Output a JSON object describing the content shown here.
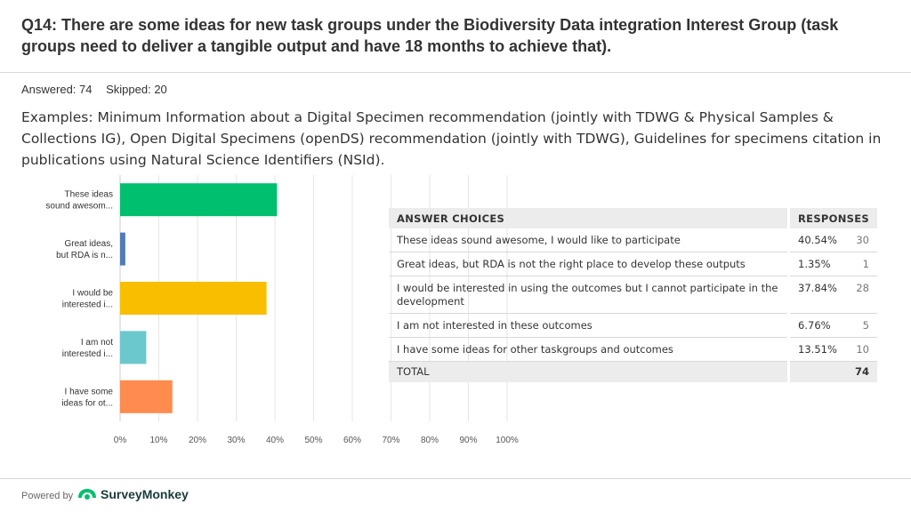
{
  "question": {
    "title": "Q14: There are some ideas for new task groups under the Biodiversity Data integration Interest Group (task groups need to deliver a tangible output and have 18 months to achieve that).",
    "answered": "Answered: 74",
    "skipped": "Skipped: 20",
    "description": "Examples: Minimum Information about a Digital Specimen recommendation (jointly with TDWG & Physical Samples & Collections IG), Open Digital Specimens (openDS) recommendation (jointly with TDWG), Guidelines for specimens citation in publications using Natural Science Identifiers (NSId)."
  },
  "chart_data": {
    "type": "bar",
    "orientation": "horizontal",
    "categories": [
      [
        "These ideas",
        "sound awesom..."
      ],
      [
        "Great ideas,",
        "but RDA is n..."
      ],
      [
        "I would be",
        "interested i..."
      ],
      [
        "I am not",
        "interested i..."
      ],
      [
        "I have some",
        "ideas for ot..."
      ]
    ],
    "values": [
      40.54,
      1.35,
      37.84,
      6.76,
      13.51
    ],
    "colors": [
      "#00bf6f",
      "#507cb6",
      "#f9be00",
      "#6bc8cd",
      "#ff8b4f"
    ],
    "xlim": [
      0,
      100
    ],
    "xticks": [
      "0%",
      "10%",
      "20%",
      "30%",
      "40%",
      "50%",
      "60%",
      "70%",
      "80%",
      "90%",
      "100%"
    ],
    "grid": true
  },
  "table": {
    "headers": {
      "choices": "ANSWER CHOICES",
      "responses": "RESPONSES"
    },
    "rows": [
      {
        "choice": "These ideas sound awesome, I would like to participate",
        "percent": "40.54%",
        "count": "30"
      },
      {
        "choice": "Great ideas, but RDA is not the right place to develop these outputs",
        "percent": "1.35%",
        "count": "1"
      },
      {
        "choice": "I would be interested in using the outcomes but I cannot participate in the development",
        "percent": "37.84%",
        "count": "28"
      },
      {
        "choice": "I am not interested in these outcomes",
        "percent": "6.76%",
        "count": "5"
      },
      {
        "choice": "I have some ideas for other taskgroups and outcomes",
        "percent": "13.51%",
        "count": "10"
      }
    ],
    "total_label": "TOTAL",
    "total_value": "74"
  },
  "footer": {
    "powered_by": "Powered by",
    "brand": "SurveyMonkey"
  }
}
